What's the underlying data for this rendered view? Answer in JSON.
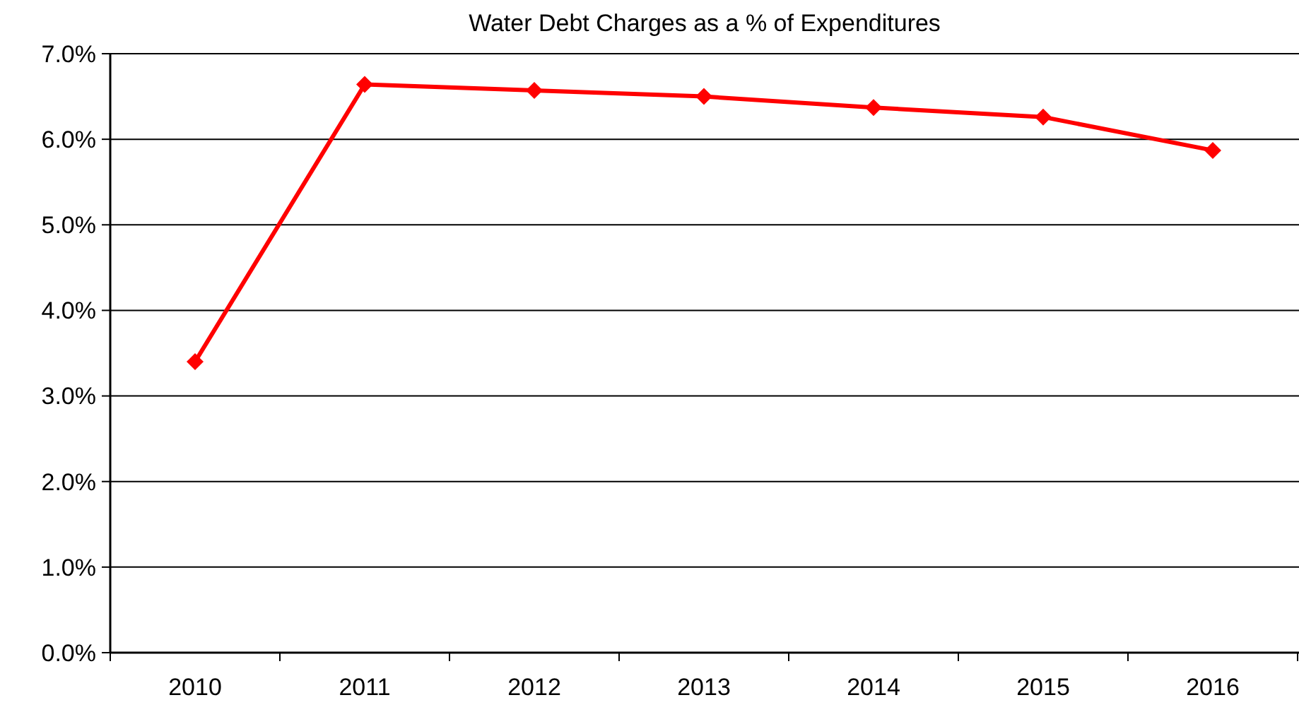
{
  "chart_data": {
    "type": "line",
    "title": "Water Debt Charges as a % of Expenditures",
    "categories": [
      "2010",
      "2011",
      "2012",
      "2013",
      "2014",
      "2015",
      "2016"
    ],
    "series": [
      {
        "color": "#ff0000",
        "values": [
          3.4,
          6.64,
          6.57,
          6.5,
          6.37,
          6.26,
          5.87
        ]
      }
    ],
    "ylim": [
      0,
      7
    ],
    "yticks": [
      {
        "value": 0,
        "label": "0.0%"
      },
      {
        "value": 1,
        "label": "1.0%"
      },
      {
        "value": 2,
        "label": "2.0%"
      },
      {
        "value": 3,
        "label": "3.0%"
      },
      {
        "value": 4,
        "label": "4.0%"
      },
      {
        "value": 5,
        "label": "5.0%"
      },
      {
        "value": 6,
        "label": "6.0%"
      },
      {
        "value": 7,
        "label": "7.0%"
      }
    ],
    "grid": "y",
    "marker": "diamond",
    "line_style": "solid"
  }
}
